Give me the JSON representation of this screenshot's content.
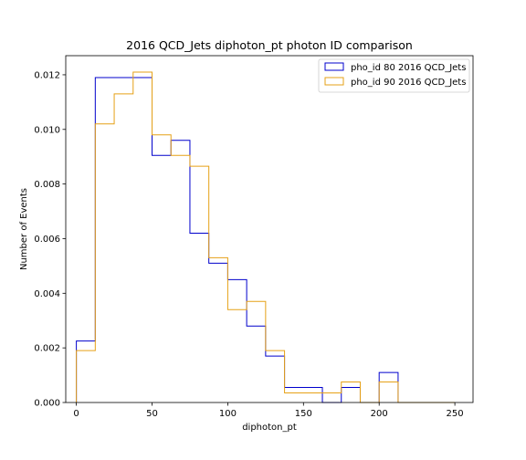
{
  "chart_data": {
    "type": "step-histogram",
    "title": "2016 QCD_Jets diphoton_pt photon ID comparison",
    "xlabel": "diphoton_pt",
    "ylabel": "Number of Events",
    "xlim": [
      -7,
      262
    ],
    "ylim": [
      0,
      0.0127
    ],
    "xticks": [
      0,
      50,
      100,
      150,
      200,
      250
    ],
    "yticks": [
      0.0,
      0.002,
      0.004,
      0.006,
      0.008,
      0.01,
      0.012
    ],
    "ytick_labels": [
      "0.000",
      "0.002",
      "0.004",
      "0.006",
      "0.008",
      "0.010",
      "0.012"
    ],
    "legend_position": "top-right",
    "bin_edges": [
      0,
      12.5,
      25,
      37.5,
      50,
      62.5,
      75,
      87.5,
      100,
      112.5,
      125,
      137.5,
      150,
      162.5,
      175,
      187.5,
      200,
      212.5,
      225,
      237.5,
      250
    ],
    "series": [
      {
        "name": "pho_id 80 2016 QCD_Jets",
        "color": "#0000cc",
        "values": [
          0.00225,
          0.0119,
          0.0119,
          0.0119,
          0.00905,
          0.0096,
          0.0062,
          0.0051,
          0.0045,
          0.0028,
          0.0017,
          0.00055,
          0.00055,
          0.0,
          0.00055,
          0.0,
          0.0011,
          0.0,
          0.0,
          0.0
        ]
      },
      {
        "name": "pho_id 90 2016 QCD_Jets",
        "color": "#e6a117",
        "values": [
          0.0019,
          0.0102,
          0.0113,
          0.0121,
          0.0098,
          0.00905,
          0.00865,
          0.0053,
          0.0034,
          0.0037,
          0.0019,
          0.00035,
          0.00035,
          0.00035,
          0.00075,
          0.0,
          0.00075,
          0.0,
          0.0,
          0.0
        ]
      }
    ]
  }
}
